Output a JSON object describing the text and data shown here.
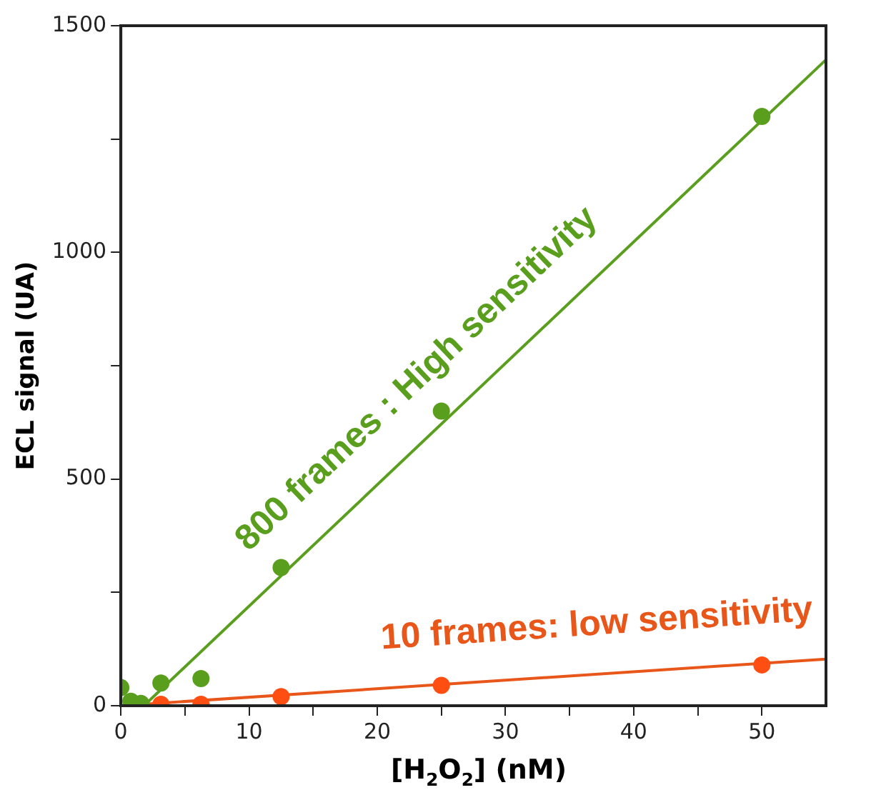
{
  "chart_data": {
    "type": "scatter",
    "xlabel": "[H$_{2}$O$_{2}$] (nM)",
    "ylabel": "ECL signal (UA)",
    "xlim": [
      0,
      55
    ],
    "xticks": [
      0,
      {
        "value": 5,
        "label": null
      },
      10,
      {
        "value": 15,
        "label": null
      },
      20,
      {
        "value": 25,
        "label": null
      },
      30,
      {
        "value": 35,
        "label": null
      },
      40,
      {
        "value": 45,
        "label": null
      },
      50
    ],
    "ylim": [
      0,
      1500
    ],
    "yticks": [
      0,
      {
        "value": 250,
        "label": null
      },
      500,
      {
        "value": 750,
        "label": null
      },
      1000,
      {
        "value": 1250,
        "label": null
      },
      1500
    ],
    "grid": false,
    "legend": false,
    "marker": "circle",
    "annotations": [
      "800 frames : High sensitivity",
      "10 frames: low sensitivity"
    ],
    "series": [
      {
        "type": "line",
        "marker": "none",
        "color": "#5a9e1e",
        "x": [
          1.8,
          55
        ],
        "values": [
          0,
          1425
        ]
      },
      {
        "type": "line",
        "marker": "none",
        "color": "#e8561a",
        "x": [
          0,
          55
        ],
        "values": [
          0,
          103
        ]
      },
      {
        "color": "#5a9e1e",
        "x": [
          0,
          0.78,
          1.56,
          3.125,
          6.25,
          12.5,
          25,
          50
        ],
        "values": [
          40,
          10,
          5,
          50,
          60,
          305,
          650,
          1300
        ]
      },
      {
        "color": "#ff4e12",
        "x": [
          3.125,
          6.25,
          12.5,
          25,
          50
        ],
        "values": [
          3,
          3,
          20,
          45,
          90
        ]
      }
    ]
  }
}
